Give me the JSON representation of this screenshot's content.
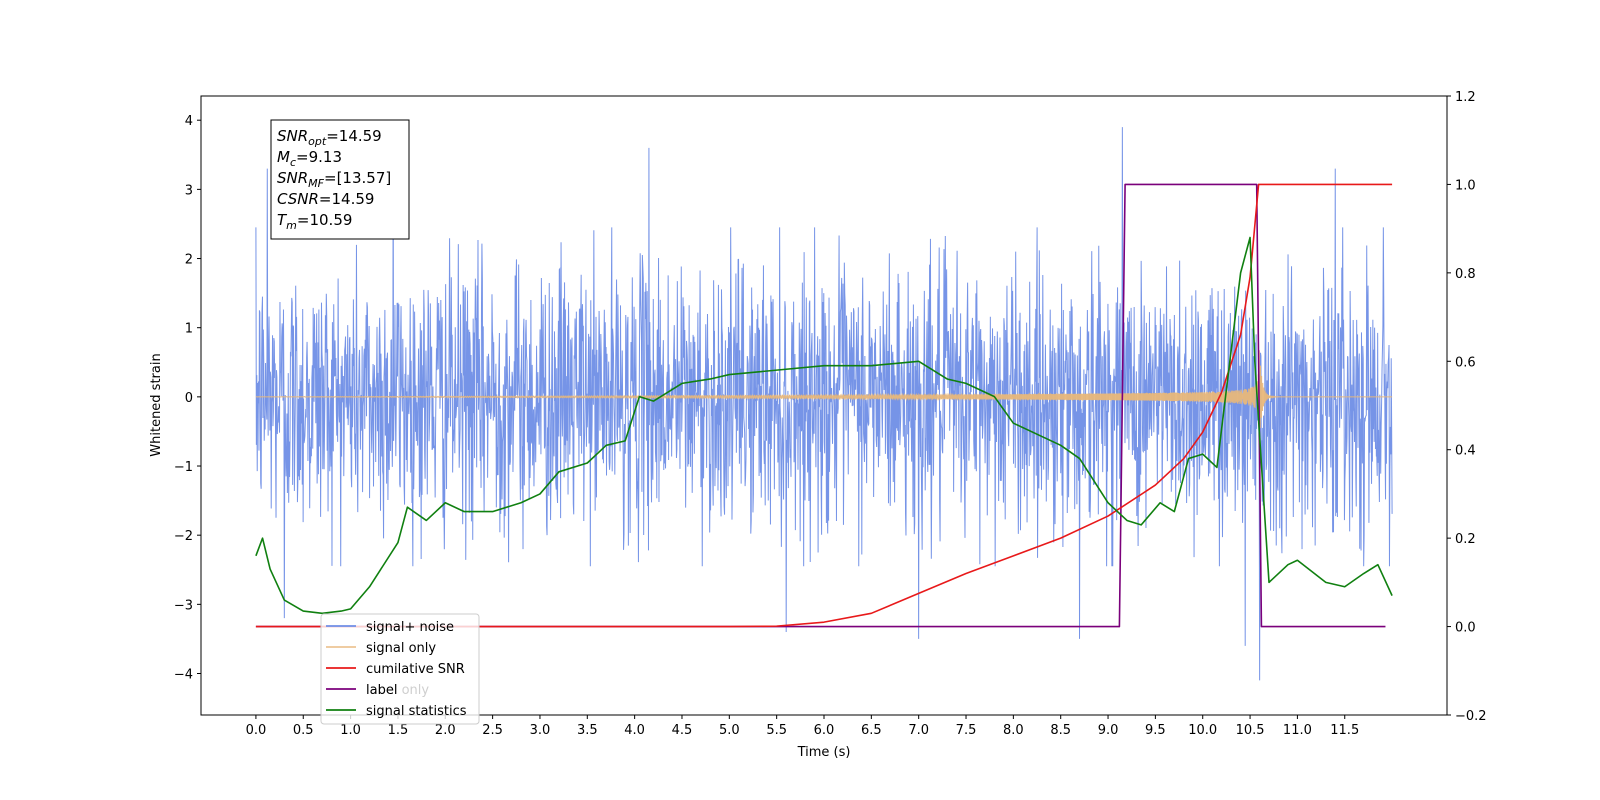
{
  "chart_data": {
    "type": "line",
    "xlabel": "Time (s)",
    "ylabel": "Whitened strain",
    "xlim": [
      -0.58,
      12.58
    ],
    "ylim": [
      -4.6,
      4.35
    ],
    "y2lim": [
      -0.2,
      1.2
    ],
    "x_ticks": [
      0.0,
      0.5,
      1.0,
      1.5,
      2.0,
      2.5,
      3.0,
      3.5,
      4.0,
      4.5,
      5.0,
      5.5,
      6.0,
      6.5,
      7.0,
      7.5,
      8.0,
      8.5,
      9.0,
      9.5,
      10.0,
      10.5,
      11.0,
      11.5
    ],
    "x_tick_labels": [
      "0.0",
      "0.5",
      "1.0",
      "1.5",
      "2.0",
      "2.5",
      "3.0",
      "3.5",
      "4.0",
      "4.5",
      "5.0",
      "5.5",
      "6.0",
      "6.5",
      "7.0",
      "7.5",
      "8.0",
      "8.5",
      "9.0",
      "9.5",
      "10.0",
      "10.5",
      "11.0",
      "11.5"
    ],
    "y_ticks": [
      4,
      3,
      2,
      1,
      0,
      -1,
      -2,
      -3,
      -4
    ],
    "y_tick_labels": [
      "4",
      "3",
      "2",
      "1",
      "0",
      "−1",
      "−2",
      "−3",
      "−4"
    ],
    "y2_ticks": [
      1.2,
      1.0,
      0.8,
      0.6,
      0.4,
      0.2,
      0.0,
      -0.2
    ],
    "y2_tick_labels": [
      "1.2",
      "1.0",
      "0.8",
      "0.6",
      "0.4",
      "0.2",
      "0.0",
      "−0.2"
    ],
    "grid": false,
    "legend_position": "lower-left",
    "annotation": [
      {
        "main": "SNR",
        "sub": "opt",
        "rest": "=14.59"
      },
      {
        "main": "M",
        "sub": "c",
        "rest": "=9.13"
      },
      {
        "main": "SNR",
        "sub": "MF",
        "rest": "=[13.57]"
      },
      {
        "main": "CSNR",
        "sub": "",
        "rest": "=14.59"
      },
      {
        "main": "T",
        "sub": "m",
        "rest": "=10.59"
      }
    ],
    "series": [
      {
        "name": "signal+ noise",
        "axis": "left",
        "color": "#6f8ee6",
        "description": "noise",
        "t_start": 0.0,
        "t_end": 12.0,
        "envelope": 2.0,
        "spikes": [
          [
            0.12,
            3.3
          ],
          [
            0.3,
            -3.2
          ],
          [
            1.45,
            3.6
          ],
          [
            4.15,
            3.6
          ],
          [
            5.6,
            -3.4
          ],
          [
            7.0,
            -3.5
          ],
          [
            8.7,
            -3.5
          ],
          [
            9.15,
            3.9
          ],
          [
            10.45,
            -3.6
          ],
          [
            10.6,
            -4.1
          ],
          [
            11.4,
            3.3
          ]
        ]
      },
      {
        "name": "signal only",
        "axis": "left",
        "color": "#e8b77a",
        "t_start": 0.0,
        "t_end": 12.0,
        "merger_time": 10.59,
        "peak_amplitude": 0.9
      },
      {
        "name": "cumilative SNR",
        "axis": "right",
        "color": "#e8191a",
        "x": [
          0.0,
          5.0,
          5.5,
          6.0,
          6.5,
          7.0,
          7.5,
          8.0,
          8.5,
          9.0,
          9.5,
          9.8,
          10.0,
          10.2,
          10.4,
          10.5,
          10.59,
          12.0
        ],
        "y": [
          0.0,
          0.0,
          0.001,
          0.01,
          0.03,
          0.075,
          0.12,
          0.16,
          0.2,
          0.25,
          0.32,
          0.38,
          0.44,
          0.53,
          0.66,
          0.79,
          1.0,
          1.0
        ]
      },
      {
        "name": "label",
        "axis": "right",
        "color": "#7b007b",
        "x": [
          0.0,
          9.12,
          9.18,
          10.57,
          10.62,
          11.93
        ],
        "y": [
          0.0,
          0.0,
          1.0,
          1.0,
          0.0,
          0.0
        ]
      },
      {
        "name": "label only",
        "axis": "right",
        "color": "#cfcfcf",
        "x": [],
        "y": []
      },
      {
        "name": "signal statistics",
        "axis": "right",
        "color": "#108010",
        "x": [
          0.0,
          0.07,
          0.15,
          0.3,
          0.5,
          0.7,
          0.9,
          1.0,
          1.2,
          1.5,
          1.6,
          1.8,
          2.0,
          2.2,
          2.5,
          2.8,
          3.0,
          3.2,
          3.5,
          3.7,
          3.9,
          4.05,
          4.2,
          4.5,
          4.8,
          5.0,
          5.5,
          6.0,
          6.5,
          7.0,
          7.3,
          7.5,
          7.8,
          8.0,
          8.3,
          8.5,
          8.7,
          9.0,
          9.2,
          9.35,
          9.55,
          9.7,
          9.85,
          10.0,
          10.15,
          10.4,
          10.5,
          10.55,
          10.7,
          10.9,
          11.0,
          11.3,
          11.5,
          11.7,
          11.85,
          12.0
        ],
        "y": [
          0.16,
          0.2,
          0.13,
          0.06,
          0.035,
          0.03,
          0.035,
          0.04,
          0.09,
          0.19,
          0.27,
          0.24,
          0.28,
          0.26,
          0.26,
          0.28,
          0.3,
          0.35,
          0.37,
          0.41,
          0.42,
          0.52,
          0.51,
          0.55,
          0.56,
          0.57,
          0.58,
          0.59,
          0.59,
          0.6,
          0.56,
          0.55,
          0.52,
          0.46,
          0.43,
          0.41,
          0.38,
          0.28,
          0.24,
          0.23,
          0.28,
          0.26,
          0.38,
          0.39,
          0.36,
          0.8,
          0.88,
          0.6,
          0.1,
          0.14,
          0.15,
          0.1,
          0.09,
          0.12,
          0.14,
          0.07
        ]
      }
    ]
  }
}
